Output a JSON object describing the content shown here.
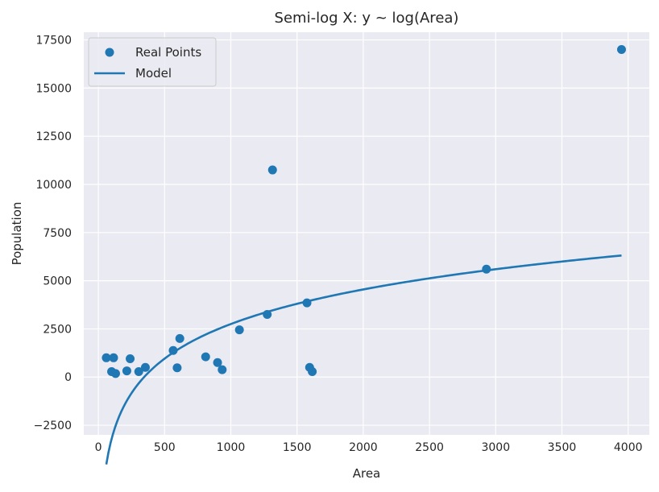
{
  "chart_data": {
    "type": "scatter",
    "title": "Semi-log X: y ~ log(Area)",
    "xlabel": "Area",
    "ylabel": "Population",
    "xlim": [
      -110,
      4160
    ],
    "ylim": [
      -3000,
      17900
    ],
    "x_ticks": [
      0,
      500,
      1000,
      1500,
      2000,
      2500,
      3000,
      3500,
      4000
    ],
    "x_tick_labels": [
      "0",
      "500",
      "1000",
      "1500",
      "2000",
      "2500",
      "3000",
      "3500",
      "4000"
    ],
    "y_ticks": [
      -2500,
      0,
      2500,
      5000,
      7500,
      10000,
      12500,
      15000,
      17500
    ],
    "y_tick_labels": [
      "−2500",
      "0",
      "2500",
      "5000",
      "7500",
      "10000",
      "12500",
      "15000",
      "17500"
    ],
    "grid": true,
    "legend_position": "top-left",
    "series": [
      {
        "name": "Real Points",
        "kind": "scatter",
        "color": "#1f77b4",
        "points": [
          {
            "x": 60,
            "y": 1000
          },
          {
            "x": 100,
            "y": 280
          },
          {
            "x": 115,
            "y": 1000
          },
          {
            "x": 130,
            "y": 180
          },
          {
            "x": 215,
            "y": 320
          },
          {
            "x": 240,
            "y": 950
          },
          {
            "x": 305,
            "y": 280
          },
          {
            "x": 355,
            "y": 500
          },
          {
            "x": 565,
            "y": 1380
          },
          {
            "x": 595,
            "y": 480
          },
          {
            "x": 615,
            "y": 2000
          },
          {
            "x": 810,
            "y": 1050
          },
          {
            "x": 900,
            "y": 750
          },
          {
            "x": 935,
            "y": 380
          },
          {
            "x": 1065,
            "y": 2450
          },
          {
            "x": 1275,
            "y": 3250
          },
          {
            "x": 1315,
            "y": 10750
          },
          {
            "x": 1575,
            "y": 3850
          },
          {
            "x": 1595,
            "y": 500
          },
          {
            "x": 1615,
            "y": 280
          },
          {
            "x": 2930,
            "y": 5600
          },
          {
            "x": 3950,
            "y": 17000
          }
        ]
      },
      {
        "name": "Model",
        "kind": "line",
        "color": "#1f77b4",
        "model": {
          "form": "a + b*ln(x)",
          "a": -15140,
          "b": 2590,
          "x_start": 60,
          "x_end": 3950
        }
      }
    ]
  }
}
